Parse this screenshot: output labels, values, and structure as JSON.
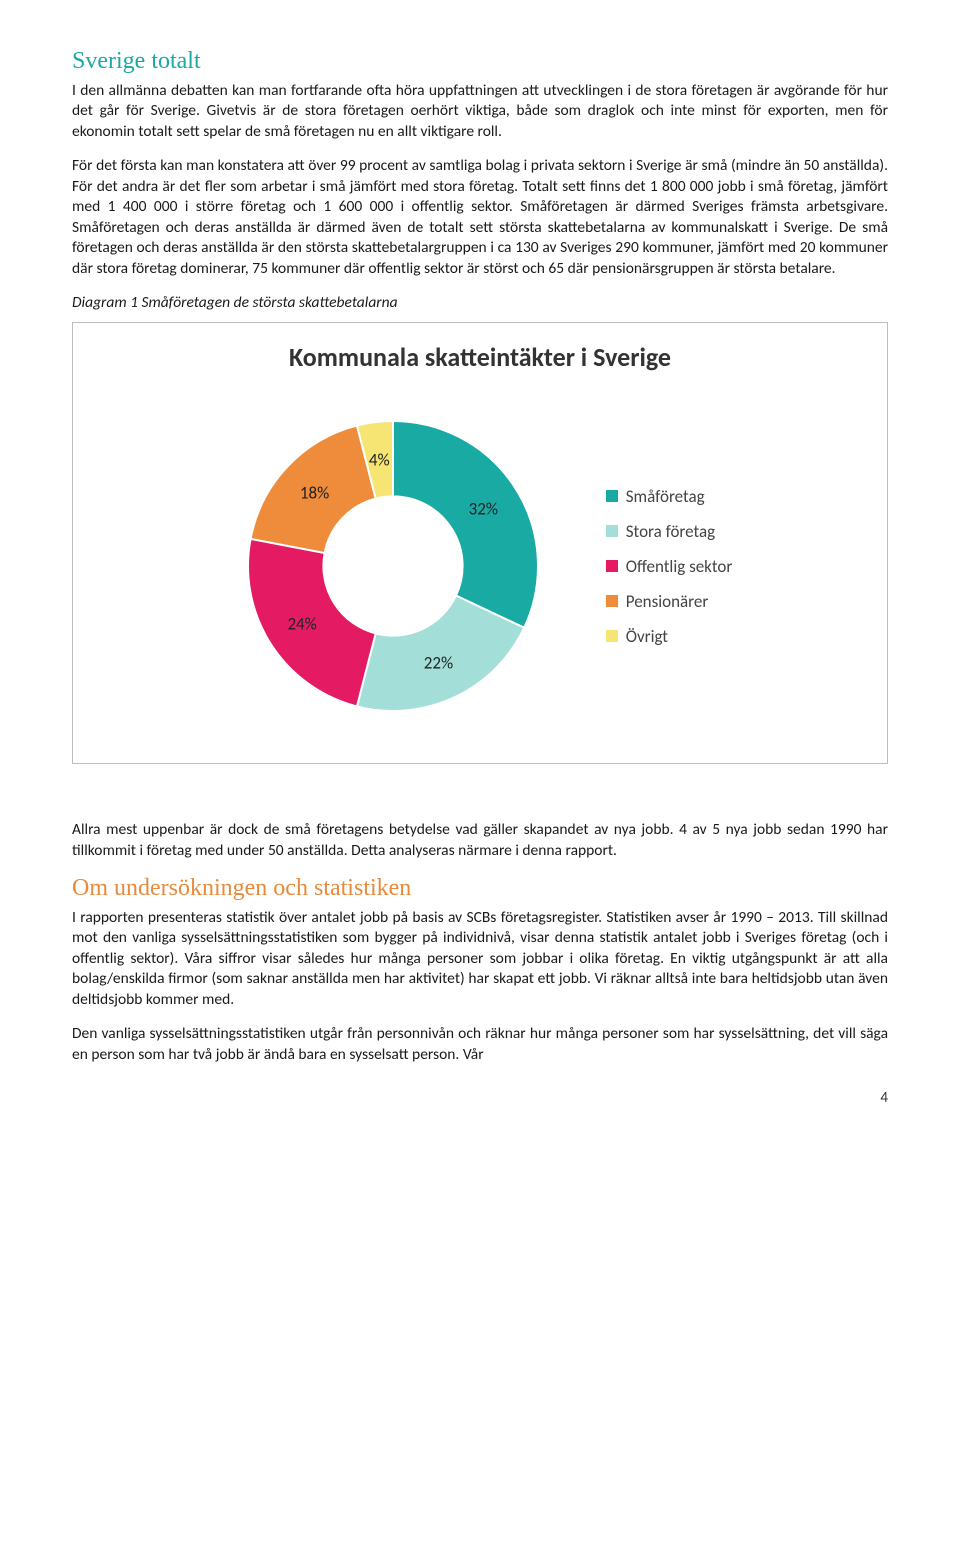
{
  "section1": {
    "heading": "Sverige totalt",
    "p1": "I den allmänna debatten kan man fortfarande ofta höra uppfattningen att utvecklingen i de stora företagen är avgörande för hur det går för Sverige. Givetvis är de stora företagen oerhört viktiga, både som draglok och inte minst för exporten, men för ekonomin totalt sett spelar de små företagen nu en allt viktigare roll.",
    "p2": "För det första kan man konstatera att över 99 procent av samtliga bolag i privata sektorn i Sverige är små (mindre än 50 anställda). För det andra är det fler som arbetar i små jämfört med stora företag. Totalt sett finns det 1 800 000 jobb i små företag, jämfört med 1 400 000 i större företag och 1 600 000 i offentlig sektor. Småföretagen är därmed Sveriges främsta arbetsgivare. Småföretagen och deras anställda är därmed även de totalt sett största skattebetalarna av kommunalskatt i Sverige. De små företagen och deras anställda är den största skattebetalargruppen i ca 130 av Sveriges 290 kommuner, jämfört med 20 kommuner där stora företag dominerar, 75 kommuner där offentlig sektor är störst och 65 där pensionärsgruppen är största betalare.",
    "diagram_caption": "Diagram 1 Småföretagen de största skattebetalarna"
  },
  "chart": {
    "type": "donut",
    "title": "Kommunala skatteintäkter i Sverige",
    "background_color": "#ffffff",
    "border_color": "#bdbdbd",
    "inner_radius_ratio": 0.48,
    "slices": [
      {
        "label": "Småföretag",
        "value": 32,
        "pct_label": "32%",
        "color": "#19aaa4"
      },
      {
        "label": "Stora företag",
        "value": 22,
        "pct_label": "22%",
        "color": "#a3ded8"
      },
      {
        "label": "Offentlig sektor",
        "value": 24,
        "pct_label": "24%",
        "color": "#e41b63"
      },
      {
        "label": "Pensionärer",
        "value": 18,
        "pct_label": "18%",
        "color": "#ef8c3b"
      },
      {
        "label": "Övrigt",
        "value": 4,
        "pct_label": "4%",
        "color": "#f6e573"
      }
    ],
    "label_fontsize": 17,
    "label_color": "#222222",
    "legend_fontsize": 17,
    "legend_color": "#444444",
    "title_fontsize": 26
  },
  "after_chart": {
    "p1": "Allra mest uppenbar är dock de små företagens betydelse vad gäller skapandet av nya jobb. 4 av 5 nya jobb sedan 1990 har tillkommit i företag med under 50 anställda. Detta analyseras närmare i denna rapport."
  },
  "section2": {
    "heading": "Om undersökningen och statistiken",
    "p1": "I rapporten presenteras statistik över antalet jobb på basis av SCBs företagsregister. Statistiken avser år 1990 – 2013. Till skillnad mot den vanliga sysselsättningsstatistiken som bygger på individnivå, visar denna statistik antalet jobb i Sveriges företag (och i offentlig sektor). Våra siffror visar således hur många personer som jobbar i olika företag. En viktig utgångspunkt är att alla bolag/enskilda firmor (som saknar anställda men har aktivitet) har skapat ett jobb. Vi räknar alltså inte bara heltidsjobb utan även deltidsjobb kommer med.",
    "p2": "Den vanliga sysselsättningsstatistiken utgår från personnivån och räknar hur många personer som har sysselsättning, det vill säga en person som har två jobb är ändå bara en sysselsatt person. Vår"
  },
  "page_number": "4"
}
